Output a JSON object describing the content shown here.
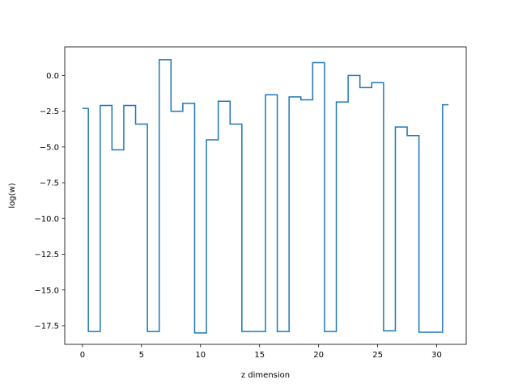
{
  "chart_data": {
    "type": "line",
    "drawstyle": "steps-mid",
    "title": "",
    "xlabel": "z dimension",
    "ylabel": "log(w)",
    "xlim": [
      -1.5,
      32.5
    ],
    "ylim": [
      -18.8,
      2.0
    ],
    "xticks": [
      0,
      5,
      10,
      15,
      20,
      25,
      30
    ],
    "yticks": [
      0.0,
      -2.5,
      -5.0,
      -7.5,
      -10.0,
      -12.5,
      -15.0,
      -17.5
    ],
    "xtick_labels": [
      "0",
      "5",
      "10",
      "15",
      "20",
      "25",
      "30"
    ],
    "ytick_labels": [
      "0.0",
      "−2.5",
      "−5.0",
      "−7.5",
      "−10.0",
      "−12.5",
      "−15.0",
      "−17.5"
    ],
    "grid": false,
    "line_color": "#1f77b4",
    "series": [
      {
        "x": [
          0,
          1,
          2,
          3,
          4,
          5,
          6,
          7,
          8,
          9,
          10,
          11,
          12,
          13,
          14,
          15,
          16,
          17,
          18,
          19,
          20,
          21,
          22,
          23,
          24,
          25,
          26,
          27,
          28,
          29,
          30,
          31
        ],
        "values": [
          -2.3,
          -17.9,
          -2.1,
          -5.2,
          -2.1,
          -3.4,
          -17.9,
          1.1,
          -2.5,
          -1.95,
          -18.0,
          -4.5,
          -1.8,
          -3.4,
          -17.9,
          -17.9,
          -1.35,
          -17.9,
          -1.5,
          -1.7,
          0.9,
          -17.9,
          -1.85,
          0.0,
          -0.85,
          -0.5,
          -17.85,
          -3.6,
          -4.2,
          -17.95,
          -17.95,
          -2.05
        ]
      }
    ]
  }
}
